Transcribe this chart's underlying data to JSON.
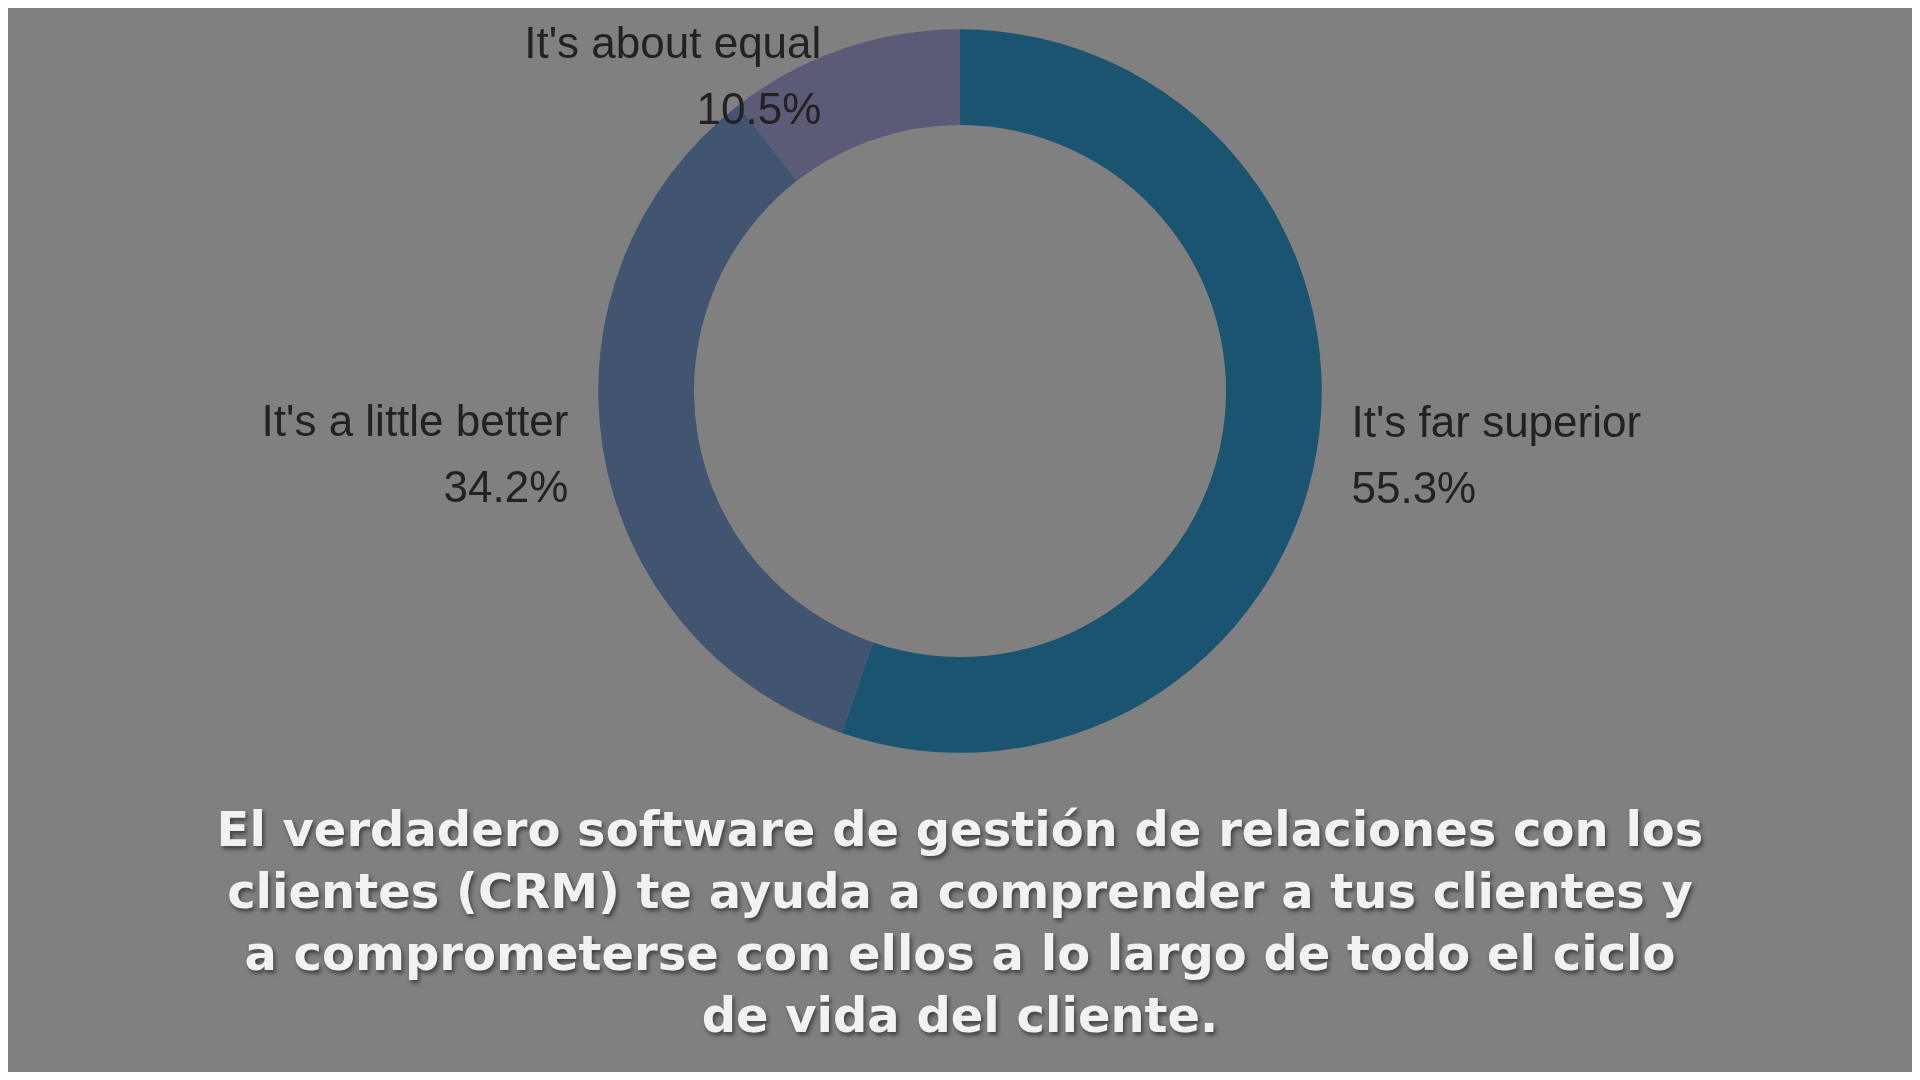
{
  "chart_data": {
    "type": "donut",
    "categories": [
      "It's far superior",
      "It's a little better",
      "It's about equal"
    ],
    "values": [
      55.3,
      34.2,
      10.5
    ],
    "value_labels": [
      "55.3%",
      "34.2%",
      "10.5%"
    ],
    "colors": [
      "#1b5470",
      "#415571",
      "#5b5b78"
    ],
    "legend": false,
    "annotations": [
      "El verdadero software de gestión de relaciones con los clientes (CRM) te ayuda a comprender a tus clientes y a comprometerse con ellos a lo largo de todo el ciclo de vida del cliente."
    ]
  }
}
